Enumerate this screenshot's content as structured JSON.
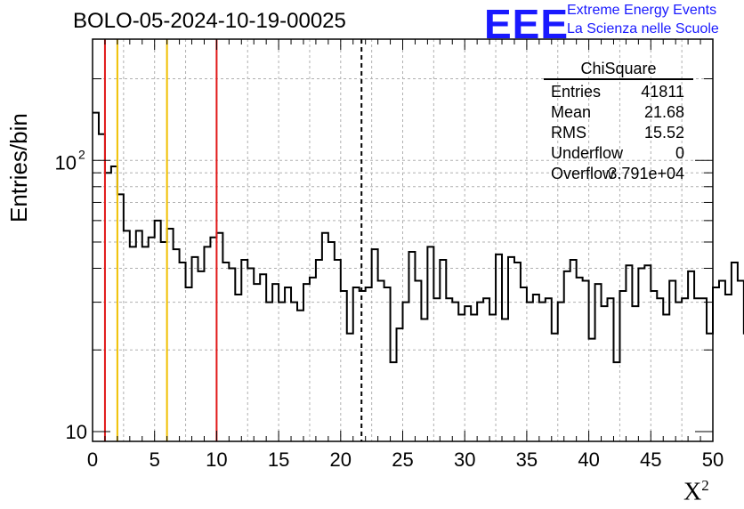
{
  "title": "BOLO-05-2024-10-19-00025",
  "logo": {
    "mark": "EEE",
    "line1": "Extreme Energy Events",
    "line2": "La Scienza nelle Scuole",
    "color": "#1919ff"
  },
  "axes": {
    "ylabel": "Entries/bin",
    "xlabel": "X",
    "xlabel_sup": "2"
  },
  "stats": {
    "title": "ChiSquare",
    "rows": [
      {
        "key": "Entries",
        "value": "41811"
      },
      {
        "key": "Mean",
        "value": "21.68"
      },
      {
        "key": "RMS",
        "value": "15.52"
      },
      {
        "key": "Underflow",
        "value": "0"
      },
      {
        "key": "Overflow",
        "value": "3.791e+04"
      }
    ]
  },
  "chart_data": {
    "type": "histogram",
    "xlim": [
      0,
      50
    ],
    "ylim": [
      9.2,
      280
    ],
    "yscale": "log",
    "bin_width": 0.5,
    "grid": true,
    "xticks": [
      0,
      5,
      10,
      15,
      20,
      25,
      30,
      35,
      40,
      45,
      50
    ],
    "xtick_labels": [
      "0",
      "5",
      "10",
      "15",
      "20",
      "25",
      "30",
      "35",
      "40",
      "45",
      "50"
    ],
    "yticks": [
      10,
      100
    ],
    "ytick_labels": [
      "10",
      "10",
      "2"
    ],
    "values": [
      150,
      125,
      90,
      95,
      75,
      55,
      48,
      55,
      48,
      52,
      60,
      50,
      56,
      47,
      42,
      34,
      44,
      39,
      48,
      52,
      54,
      42,
      40,
      32,
      43,
      40,
      35,
      38,
      30,
      35,
      30,
      34,
      30,
      28,
      35,
      37,
      43,
      54,
      50,
      43,
      33,
      23,
      34,
      33,
      34,
      47,
      36,
      34,
      18,
      24,
      30,
      46,
      36,
      26,
      48,
      31,
      43,
      31,
      30,
      27,
      29,
      27,
      30,
      31,
      27,
      45,
      26,
      44,
      42,
      34,
      30,
      32,
      30,
      31,
      23,
      30,
      39,
      43,
      37,
      36,
      22,
      35,
      29,
      31,
      18,
      33,
      41,
      29,
      40,
      41,
      33,
      31,
      27,
      36,
      30,
      31,
      39,
      31,
      31,
      23,
      34,
      36,
      32,
      42,
      36,
      23,
      28,
      30,
      34,
      32,
      37,
      23,
      25,
      34,
      29,
      28,
      41,
      29,
      21,
      29,
      30,
      41,
      28,
      40,
      39,
      34,
      32,
      37,
      29,
      43,
      38,
      31,
      29,
      24,
      42,
      35,
      36,
      38,
      36,
      29,
      29,
      33,
      30,
      32,
      26,
      36,
      37,
      34,
      31,
      30,
      30,
      33,
      28,
      28,
      29,
      30,
      33,
      30,
      29,
      33,
      26,
      30,
      28,
      31,
      32,
      38,
      33,
      31,
      31,
      37,
      27,
      28,
      31,
      28,
      35,
      29,
      31,
      30,
      30,
      27,
      38,
      40,
      26,
      30,
      32,
      35,
      32,
      41,
      35,
      32,
      32,
      31,
      29,
      27,
      30,
      35,
      29,
      33,
      35,
      38
    ],
    "vlines": [
      {
        "x": 1,
        "color": "#e11919",
        "style": "solid"
      },
      {
        "x": 2,
        "color": "#f0c000",
        "style": "solid"
      },
      {
        "x": 6,
        "color": "#f0c000",
        "style": "solid"
      },
      {
        "x": 10,
        "color": "#e11919",
        "style": "solid"
      },
      {
        "x": 21.68,
        "color": "#000000",
        "style": "dashed"
      }
    ]
  }
}
